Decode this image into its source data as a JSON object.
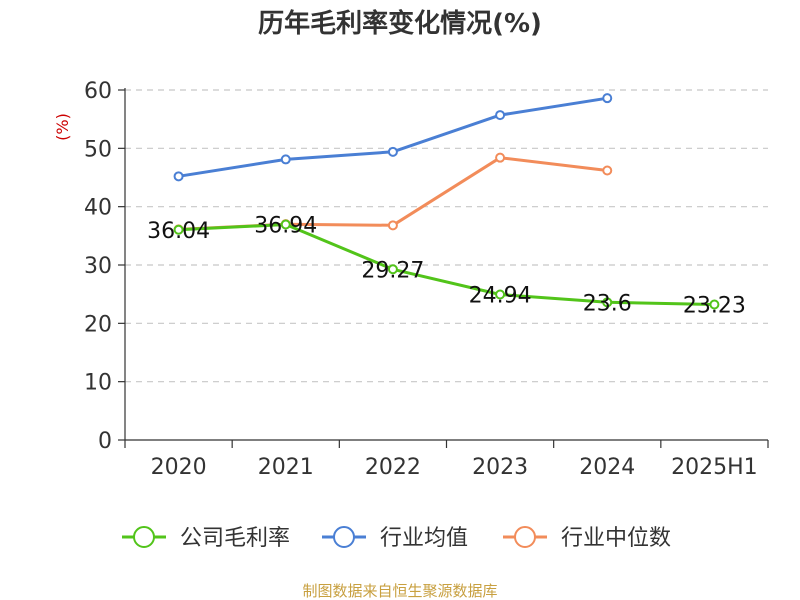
{
  "source": "制图数据来自恒生聚源数据库",
  "chart_data": {
    "type": "line",
    "title": "历年毛利率变化情况(%)",
    "unit": "(%)",
    "categories": [
      "2020",
      "2021",
      "2022",
      "2023",
      "2024",
      "2025H1"
    ],
    "ylim": [
      0,
      60
    ],
    "yticks": [
      "0",
      "10",
      "20",
      "30",
      "40",
      "50",
      "60"
    ],
    "grid": true,
    "legend_position": "bottom",
    "series": [
      {
        "name": "公司毛利率",
        "color": "#52c41a",
        "values": [
          36.04,
          36.94,
          29.27,
          24.94,
          23.6,
          23.23
        ],
        "labels": [
          "36.04",
          "36.94",
          "29.27",
          "24.94",
          "23.6",
          "23.23"
        ]
      },
      {
        "name": "行业均值",
        "color": "#4a7fd4",
        "values": [
          45.2,
          48.1,
          49.4,
          55.7,
          58.6,
          null
        ]
      },
      {
        "name": "行业中位数",
        "color": "#f28c5a",
        "values": [
          36.1,
          37.0,
          36.8,
          48.4,
          46.2,
          null
        ]
      }
    ]
  }
}
